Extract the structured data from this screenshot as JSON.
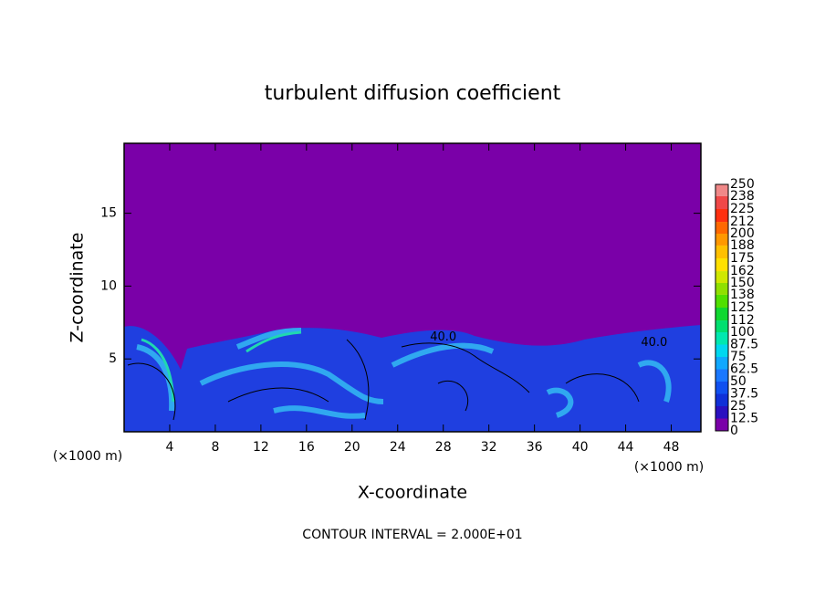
{
  "chart_data": {
    "type": "contour",
    "title": "turbulent diffusion coefficient",
    "x_label": "X-coordinate",
    "y_label": "Z-coordinate",
    "x_unit_labels": [
      "(×1000 m)",
      "(×1000 m)"
    ],
    "xlim": [
      0,
      50.6
    ],
    "xticks": [
      4,
      8,
      12,
      16,
      20,
      24,
      28,
      32,
      36,
      40,
      44,
      48
    ],
    "ylim": [
      0,
      19.8
    ],
    "yticks": [
      5,
      10,
      15
    ],
    "colorbar": {
      "levels": [
        0,
        12.5,
        25,
        37.5,
        50,
        62.5,
        75,
        87.5,
        100,
        112,
        125,
        138,
        150,
        162,
        175,
        188,
        200,
        212,
        225,
        238,
        250
      ],
      "colors": [
        "#7a00a8",
        "#2a10c0",
        "#1030d8",
        "#1050f0",
        "#1a78ff",
        "#10a8ff",
        "#00d8f0",
        "#00e8b0",
        "#00e070",
        "#10d830",
        "#50e000",
        "#90e000",
        "#d0e800",
        "#ffe000",
        "#ffc000",
        "#ff9800",
        "#ff6800",
        "#ff3010",
        "#f04848",
        "#f08888"
      ]
    },
    "contour_interval": "CONTOUR INTERVAL = 2.000E+01",
    "annotations": [
      {
        "text": "40.0",
        "x": 28,
        "y": 6.5
      },
      {
        "text": "40.0",
        "x": 46.5,
        "y": 6.1
      }
    ]
  }
}
